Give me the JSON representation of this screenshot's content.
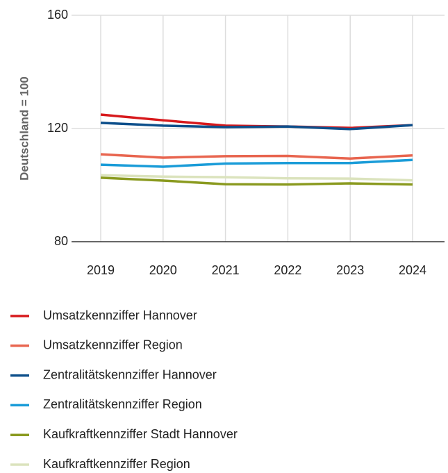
{
  "chart_data": {
    "type": "line",
    "y_label": "Deutschland = 100",
    "categories": [
      "2019",
      "2020",
      "2021",
      "2022",
      "2023",
      "2024"
    ],
    "ylim": [
      80,
      160
    ],
    "yticks": [
      80,
      120,
      160
    ],
    "grid": true,
    "legend": "bottom",
    "series": [
      {
        "name": "Umsatzkennziffer Hannover",
        "color": "#d7191c",
        "values": [
          124.9,
          122.9,
          121.0,
          120.7,
          120.2,
          121.2
        ]
      },
      {
        "name": "Umsatzkennziffer Region",
        "color": "#e8654f",
        "values": [
          110.9,
          109.7,
          110.2,
          110.3,
          109.4,
          110.5
        ]
      },
      {
        "name": "Zentralitätskennziffer Hannover",
        "color": "#0d4f8b",
        "values": [
          122.0,
          121.0,
          120.5,
          120.7,
          119.8,
          121.2
        ]
      },
      {
        "name": "Zentralitätskennziffer Region",
        "color": "#1a9cd8",
        "values": [
          107.2,
          106.5,
          107.6,
          107.8,
          107.8,
          108.9
        ]
      },
      {
        "name": "Kaufkraftkennziffer Stadt Hannover",
        "color": "#8a9a1f",
        "values": [
          102.6,
          101.6,
          100.3,
          100.2,
          100.6,
          100.2
        ]
      },
      {
        "name": "Kaufkraftkennziffer Region",
        "color": "#dbe3bd",
        "values": [
          103.5,
          103.0,
          102.8,
          102.4,
          102.3,
          101.7
        ]
      }
    ]
  }
}
